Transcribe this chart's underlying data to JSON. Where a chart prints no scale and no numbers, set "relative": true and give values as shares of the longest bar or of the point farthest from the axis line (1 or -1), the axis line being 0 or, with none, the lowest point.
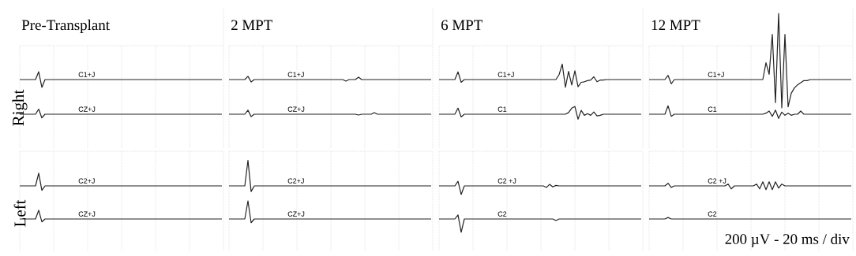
{
  "chart_data": [
    {
      "type": "line",
      "relative": true,
      "grid": true,
      "title": "Pre-Transplant",
      "ylabel": "Right",
      "categories": [
        null,
        null,
        null,
        null,
        null,
        null,
        null,
        null,
        null,
        null,
        null,
        null,
        null,
        null,
        null,
        null,
        null,
        null,
        null,
        null,
        null,
        null,
        null,
        null,
        null,
        null,
        null,
        null,
        null,
        null,
        null,
        null,
        null,
        null,
        null,
        null,
        null,
        null,
        null,
        null,
        null,
        null,
        null,
        null,
        null,
        null,
        null,
        null,
        null,
        null,
        null,
        null,
        null,
        null,
        null,
        null,
        null,
        null,
        null,
        null,
        null,
        null,
        null,
        null,
        null
      ],
      "series": [
        {
          "name": "C1+J",
          "color": "#222222",
          "values": [
            0.83,
            0.83,
            0.83,
            0.83,
            0.83,
            0.83,
            1,
            0.66,
            0.83,
            0.83,
            0.83,
            0.83,
            0.83,
            0.83,
            0.83,
            0.83,
            0.83,
            0.83,
            0.83,
            0.83,
            0.83,
            0.83,
            0.83,
            0.83,
            0.83,
            0.83,
            0.83,
            0.83,
            0.83,
            0.83,
            0.83,
            0.83,
            0.83,
            0.83,
            0.83,
            0.83,
            0.83,
            0.83,
            0.83,
            0.83,
            0.83,
            0.83,
            0.83,
            0.83,
            0.83,
            0.83,
            0.83,
            0.83,
            0.83,
            0.83,
            0.83,
            0.83,
            0.83,
            0.83,
            0.83,
            0.83,
            0.83,
            0.83,
            0.83,
            0.83,
            0.83,
            0.83,
            0.83,
            0.83,
            0.83
          ]
        },
        {
          "name": "CZ+J",
          "color": "#222222",
          "values": [
            0.08,
            0.08,
            0.08,
            0.08,
            0.08,
            0.08,
            0.19,
            0,
            0.08,
            0.08,
            0.08,
            0.08,
            0.08,
            0.08,
            0.08,
            0.08,
            0.08,
            0.08,
            0.08,
            0.08,
            0.08,
            0.08,
            0.08,
            0.08,
            0.08,
            0.08,
            0.08,
            0.08,
            0.08,
            0.08,
            0.08,
            0.08,
            0.08,
            0.08,
            0.08,
            0.08,
            0.08,
            0.08,
            0.08,
            0.08,
            0.08,
            0.08,
            0.08,
            0.08,
            0.08,
            0.08,
            0.08,
            0.08,
            0.08,
            0.08,
            0.08,
            0.08,
            0.08,
            0.08,
            0.08,
            0.08,
            0.08,
            0.08,
            0.08,
            0.08,
            0.08,
            0.08,
            0.08,
            0.08,
            0.08
          ]
        }
      ]
    },
    {
      "type": "line",
      "relative": true,
      "grid": true,
      "title": "2 MPT",
      "categories": [
        null,
        null,
        null,
        null,
        null,
        null,
        null,
        null,
        null,
        null,
        null,
        null,
        null,
        null,
        null,
        null,
        null,
        null,
        null,
        null,
        null,
        null,
        null,
        null,
        null,
        null,
        null,
        null,
        null,
        null,
        null,
        null,
        null,
        null,
        null,
        null,
        null,
        null,
        null,
        null,
        null,
        null,
        null,
        null,
        null,
        null,
        null,
        null,
        null,
        null,
        null,
        null,
        null,
        null,
        null,
        null,
        null,
        null,
        null,
        null,
        null,
        null,
        null,
        null,
        null
      ],
      "series": [
        {
          "name": "C1+J",
          "color": "#222222",
          "values": [
            0.92,
            0.92,
            0.92,
            0.92,
            0.92,
            0.92,
            1,
            0.86,
            0.92,
            0.92,
            0.92,
            0.92,
            0.92,
            0.92,
            0.92,
            0.92,
            0.92,
            0.92,
            0.92,
            0.92,
            0.92,
            0.92,
            0.92,
            0.92,
            0.92,
            0.92,
            0.92,
            0.92,
            0.92,
            0.92,
            0.92,
            0.92,
            0.92,
            0.92,
            0.92,
            0.92,
            0.92,
            0.88,
            0.92,
            0.92,
            0.92,
            0.98,
            0.92,
            0.92,
            0.92,
            0.92,
            0.92,
            0.92,
            0.92,
            0.92,
            0.92,
            0.92,
            0.92,
            0.92,
            0.92,
            0.92,
            0.92,
            0.92,
            0.92,
            0.92,
            0.92,
            0.92,
            0.92,
            0.92,
            0.92
          ]
        },
        {
          "name": "CZ+J",
          "color": "#222222",
          "values": [
            0.06,
            0.06,
            0.06,
            0.06,
            0.06,
            0.06,
            0.16,
            0,
            0.06,
            0.06,
            0.06,
            0.06,
            0.06,
            0.06,
            0.06,
            0.06,
            0.06,
            0.06,
            0.06,
            0.06,
            0.06,
            0.06,
            0.06,
            0.06,
            0.06,
            0.06,
            0.06,
            0.06,
            0.06,
            0.06,
            0.06,
            0.06,
            0.06,
            0.06,
            0.06,
            0.06,
            0.06,
            0.06,
            0.06,
            0.06,
            0.06,
            0.04,
            0.06,
            0.06,
            0.06,
            0.06,
            0.1,
            0.06,
            0.06,
            0.06,
            0.06,
            0.06,
            0.06,
            0.06,
            0.06,
            0.06,
            0.06,
            0.06,
            0.06,
            0.06,
            0.06,
            0.06,
            0.06,
            0.06,
            0.06
          ]
        }
      ]
    },
    {
      "type": "line",
      "relative": true,
      "grid": true,
      "title": "6 MPT",
      "categories": [
        null,
        null,
        null,
        null,
        null,
        null,
        null,
        null,
        null,
        null,
        null,
        null,
        null,
        null,
        null,
        null,
        null,
        null,
        null,
        null,
        null,
        null,
        null,
        null,
        null,
        null,
        null,
        null,
        null,
        null,
        null,
        null,
        null,
        null,
        null,
        null,
        null,
        null,
        null,
        null,
        null,
        null,
        null,
        null,
        null,
        null,
        null,
        null,
        null,
        null,
        null,
        null,
        null,
        null,
        null,
        null,
        null,
        null,
        null,
        null,
        null,
        null,
        null,
        null,
        null
      ],
      "series": [
        {
          "name": "C1+J",
          "color": "#222222",
          "values": [
            0.72,
            0.72,
            0.72,
            0.72,
            0.72,
            0.72,
            0.86,
            0.67,
            0.72,
            0.72,
            0.72,
            0.72,
            0.72,
            0.72,
            0.72,
            0.72,
            0.72,
            0.72,
            0.72,
            0.72,
            0.72,
            0.72,
            0.72,
            0.72,
            0.72,
            0.72,
            0.72,
            0.72,
            0.72,
            0.72,
            0.72,
            0.72,
            0.72,
            0.72,
            0.72,
            0.72,
            0.72,
            0.72,
            0.81,
            1,
            0.58,
            0.87,
            0.62,
            0.88,
            0.59,
            0.67,
            0.68,
            0.7,
            0.71,
            0.77,
            0.68,
            0.71,
            0.71,
            0.72,
            0.72,
            0.72,
            0.72,
            0.72,
            0.72,
            0.72,
            0.72,
            0.72,
            0.72,
            0.72,
            0.72
          ]
        },
        {
          "name": "C1",
          "color": "#222222",
          "values": [
            0.09,
            0.09,
            0.09,
            0.09,
            0.09,
            0.09,
            0.2,
            0.04,
            0.09,
            0.09,
            0.09,
            0.09,
            0.09,
            0.09,
            0.09,
            0.09,
            0.09,
            0.09,
            0.09,
            0.09,
            0.09,
            0.09,
            0.09,
            0.09,
            0.09,
            0.09,
            0.09,
            0.09,
            0.09,
            0.09,
            0.09,
            0.09,
            0.09,
            0.09,
            0.09,
            0.09,
            0.09,
            0.09,
            0.09,
            0.09,
            0.09,
            0.12,
            0.2,
            0.23,
            0,
            0.16,
            0.07,
            0.1,
            0.07,
            0.13,
            0.06,
            0.07,
            0.09,
            0.09,
            0.09,
            0.09,
            0.09,
            0.09,
            0.09,
            0.09,
            0.09,
            0.09,
            0.09,
            0.09,
            0.09
          ]
        }
      ]
    },
    {
      "type": "line",
      "relative": true,
      "grid": true,
      "title": "12 MPT",
      "categories": [
        null,
        null,
        null,
        null,
        null,
        null,
        null,
        null,
        null,
        null,
        null,
        null,
        null,
        null,
        null,
        null,
        null,
        null,
        null,
        null,
        null,
        null,
        null,
        null,
        null,
        null,
        null,
        null,
        null,
        null,
        null,
        null,
        null,
        null,
        null,
        null,
        null,
        null,
        null,
        null,
        null,
        null,
        null,
        null,
        null,
        null,
        null,
        null,
        null,
        null,
        null,
        null,
        null,
        null,
        null,
        null,
        null,
        null,
        null,
        null,
        null,
        null,
        null,
        null,
        null
      ],
      "series": [
        {
          "name": "C1+J",
          "color": "#222222",
          "values": [
            0.37,
            0.37,
            0.37,
            0.37,
            0.37,
            0.37,
            0.41,
            0.33,
            0.37,
            0.37,
            0.37,
            0.37,
            0.37,
            0.37,
            0.37,
            0.37,
            0.37,
            0.37,
            0.37,
            0.37,
            0.37,
            0.37,
            0.37,
            0.37,
            0.37,
            0.37,
            0.37,
            0.37,
            0.37,
            0.37,
            0.37,
            0.37,
            0.37,
            0.37,
            0.37,
            0.37,
            0.37,
            0.53,
            0.42,
            0.8,
            0.15,
            1,
            0.1,
            0.8,
            0.11,
            0.24,
            0.29,
            0.32,
            0.34,
            0.36,
            0.36,
            0.37,
            0.37,
            0.37,
            0.37,
            0.37,
            0.37,
            0.37,
            0.37,
            0.37,
            0.37,
            0.37,
            0.37,
            0.37,
            0.37
          ]
        },
        {
          "name": "C1",
          "color": "#222222",
          "values": [
            0.04,
            0.04,
            0.04,
            0.04,
            0.04,
            0.04,
            0.12,
            0.02,
            0.04,
            0.04,
            0.04,
            0.04,
            0.04,
            0.04,
            0.04,
            0.04,
            0.04,
            0.04,
            0.04,
            0.04,
            0.04,
            0.04,
            0.04,
            0.04,
            0.04,
            0.04,
            0.04,
            0.04,
            0.04,
            0.04,
            0.04,
            0.04,
            0.04,
            0.04,
            0.04,
            0.04,
            0.04,
            0.05,
            0.07,
            0.02,
            0.08,
            0,
            0.06,
            0.03,
            0.05,
            0.03,
            0.04,
            0.04,
            0.07,
            0.04,
            0.04,
            0.04,
            0.04,
            0.04,
            0.04,
            0.04,
            0.04,
            0.04,
            0.04,
            0.04,
            0.04,
            0.04,
            0.04,
            0.04,
            0.04
          ]
        }
      ]
    },
    {
      "type": "line",
      "relative": true,
      "grid": true,
      "ylabel": "Left",
      "categories": [
        null,
        null,
        null,
        null,
        null,
        null,
        null,
        null,
        null,
        null,
        null,
        null,
        null,
        null,
        null,
        null,
        null,
        null,
        null,
        null,
        null,
        null,
        null,
        null,
        null,
        null,
        null,
        null,
        null,
        null,
        null,
        null,
        null,
        null,
        null,
        null,
        null,
        null,
        null,
        null,
        null,
        null,
        null,
        null,
        null,
        null,
        null,
        null,
        null,
        null,
        null,
        null,
        null,
        null,
        null,
        null,
        null,
        null,
        null,
        null,
        null,
        null,
        null,
        null,
        null
      ],
      "series": [
        {
          "name": "C2+J",
          "color": "#222222",
          "values": [
            0.74,
            0.74,
            0.74,
            0.74,
            0.74,
            0.74,
            1,
            0.65,
            0.74,
            0.74,
            0.74,
            0.74,
            0.74,
            0.74,
            0.74,
            0.74,
            0.74,
            0.74,
            0.74,
            0.74,
            0.74,
            0.74,
            0.74,
            0.74,
            0.74,
            0.74,
            0.74,
            0.74,
            0.74,
            0.74,
            0.74,
            0.74,
            0.74,
            0.74,
            0.74,
            0.74,
            0.74,
            0.74,
            0.74,
            0.74,
            0.74,
            0.74,
            0.74,
            0.74,
            0.74,
            0.74,
            0.74,
            0.74,
            0.74,
            0.74,
            0.74,
            0.74,
            0.74,
            0.74,
            0.74,
            0.74,
            0.74,
            0.74,
            0.74,
            0.74,
            0.74,
            0.74,
            0.74,
            0.74,
            0.74
          ]
        },
        {
          "name": "CZ+J",
          "color": "#222222",
          "values": [
            0.06,
            0.06,
            0.06,
            0.06,
            0.06,
            0.06,
            0.24,
            0,
            0.06,
            0.06,
            0.06,
            0.06,
            0.06,
            0.06,
            0.06,
            0.06,
            0.06,
            0.06,
            0.06,
            0.06,
            0.06,
            0.06,
            0.06,
            0.06,
            0.06,
            0.06,
            0.06,
            0.06,
            0.06,
            0.06,
            0.06,
            0.06,
            0.06,
            0.06,
            0.06,
            0.06,
            0.06,
            0.06,
            0.06,
            0.06,
            0.06,
            0.06,
            0.06,
            0.06,
            0.06,
            0.06,
            0.06,
            0.06,
            0.06,
            0.06,
            0.06,
            0.06,
            0.06,
            0.06,
            0.06,
            0.06,
            0.06,
            0.06,
            0.06,
            0.06,
            0.06,
            0.06,
            0.06,
            0.06,
            0.06
          ]
        }
      ]
    },
    {
      "type": "line",
      "relative": true,
      "grid": true,
      "categories": [
        null,
        null,
        null,
        null,
        null,
        null,
        null,
        null,
        null,
        null,
        null,
        null,
        null,
        null,
        null,
        null,
        null,
        null,
        null,
        null,
        null,
        null,
        null,
        null,
        null,
        null,
        null,
        null,
        null,
        null,
        null,
        null,
        null,
        null,
        null,
        null,
        null,
        null,
        null,
        null,
        null,
        null,
        null,
        null,
        null,
        null,
        null,
        null,
        null,
        null,
        null,
        null,
        null,
        null,
        null,
        null,
        null,
        null,
        null,
        null,
        null,
        null,
        null,
        null,
        null
      ],
      "series": [
        {
          "name": "C2+J",
          "color": "#222222",
          "values": [
            0.59,
            0.59,
            0.59,
            0.59,
            0.59,
            0.59,
            1,
            0.5,
            0.59,
            0.59,
            0.59,
            0.59,
            0.59,
            0.59,
            0.59,
            0.59,
            0.59,
            0.59,
            0.59,
            0.59,
            0.59,
            0.59,
            0.59,
            0.59,
            0.59,
            0.59,
            0.59,
            0.59,
            0.59,
            0.59,
            0.59,
            0.59,
            0.59,
            0.59,
            0.59,
            0.59,
            0.59,
            0.59,
            0.59,
            0.59,
            0.59,
            0.59,
            0.59,
            0.59,
            0.59,
            0.59,
            0.59,
            0.59,
            0.59,
            0.59,
            0.59,
            0.59,
            0.59,
            0.59,
            0.59,
            0.59,
            0.59,
            0.59,
            0.59,
            0.59,
            0.59,
            0.59,
            0.59,
            0.59,
            0.59
          ]
        },
        {
          "name": "CZ+J",
          "color": "#222222",
          "values": [
            0.06,
            0.06,
            0.06,
            0.06,
            0.06,
            0.06,
            0.35,
            0,
            0.06,
            0.06,
            0.06,
            0.06,
            0.06,
            0.06,
            0.06,
            0.06,
            0.06,
            0.06,
            0.06,
            0.06,
            0.06,
            0.06,
            0.06,
            0.06,
            0.06,
            0.06,
            0.06,
            0.06,
            0.06,
            0.06,
            0.06,
            0.06,
            0.06,
            0.06,
            0.06,
            0.06,
            0.06,
            0.06,
            0.06,
            0.06,
            0.06,
            0.06,
            0.06,
            0.06,
            0.06,
            0.06,
            0.06,
            0.06,
            0.06,
            0.06,
            0.06,
            0.06,
            0.06,
            0.06,
            0.06,
            0.06,
            0.06,
            0.06,
            0.06,
            0.06,
            0.06,
            0.06,
            0.06,
            0.06,
            0.06
          ]
        }
      ]
    },
    {
      "type": "line",
      "relative": true,
      "grid": true,
      "categories": [
        null,
        null,
        null,
        null,
        null,
        null,
        null,
        null,
        null,
        null,
        null,
        null,
        null,
        null,
        null,
        null,
        null,
        null,
        null,
        null,
        null,
        null,
        null,
        null,
        null,
        null,
        null,
        null,
        null,
        null,
        null,
        null,
        null,
        null,
        null,
        null,
        null,
        null,
        null,
        null,
        null,
        null,
        null,
        null,
        null,
        null,
        null,
        null,
        null,
        null,
        null,
        null,
        null,
        null,
        null,
        null,
        null,
        null,
        null,
        null,
        null,
        null,
        null,
        null,
        null
      ],
      "series": [
        {
          "name": "C2 +J",
          "color": "#222222",
          "values": [
            0.91,
            0.91,
            0.91,
            0.91,
            0.91,
            0.91,
            1,
            0.74,
            0.91,
            0.91,
            0.91,
            0.91,
            0.91,
            0.91,
            0.91,
            0.91,
            0.91,
            0.91,
            0.91,
            0.91,
            0.91,
            0.91,
            0.91,
            0.91,
            0.91,
            0.91,
            0.91,
            0.91,
            0.91,
            0.91,
            0.91,
            0.91,
            0.91,
            0.91,
            0.88,
            0.94,
            0.89,
            0.92,
            0.91,
            0.91,
            0.91,
            0.91,
            0.91,
            0.91,
            0.91,
            0.91,
            0.91,
            0.91,
            0.91,
            0.91,
            0.91,
            0.91,
            0.91,
            0.91,
            0.91,
            0.91,
            0.91,
            0.91,
            0.91,
            0.91,
            0.91,
            0.91,
            0.91,
            0.91,
            0.91
          ]
        },
        {
          "name": "C2",
          "color": "#222222",
          "values": [
            0.26,
            0.26,
            0.26,
            0.26,
            0.26,
            0.26,
            0.34,
            0,
            0.26,
            0.26,
            0.26,
            0.26,
            0.26,
            0.26,
            0.26,
            0.26,
            0.26,
            0.26,
            0.26,
            0.26,
            0.26,
            0.26,
            0.26,
            0.26,
            0.26,
            0.26,
            0.26,
            0.26,
            0.26,
            0.26,
            0.26,
            0.26,
            0.26,
            0.26,
            0.26,
            0.26,
            0.26,
            0.23,
            0.26,
            0.26,
            0.26,
            0.26,
            0.26,
            0.26,
            0.26,
            0.26,
            0.26,
            0.26,
            0.26,
            0.26,
            0.26,
            0.26,
            0.26,
            0.26,
            0.26,
            0.26,
            0.26,
            0.26,
            0.26,
            0.26,
            0.26,
            0.26,
            0.26,
            0.26,
            0.26
          ]
        }
      ]
    },
    {
      "type": "line",
      "relative": true,
      "grid": true,
      "annotations": [
        "200 µV - 20 ms / div"
      ],
      "categories": [
        null,
        null,
        null,
        null,
        null,
        null,
        null,
        null,
        null,
        null,
        null,
        null,
        null,
        null,
        null,
        null,
        null,
        null,
        null,
        null,
        null,
        null,
        null,
        null,
        null,
        null,
        null,
        null,
        null,
        null,
        null,
        null,
        null,
        null,
        null,
        null,
        null,
        null,
        null,
        null,
        null,
        null,
        null,
        null,
        null,
        null,
        null,
        null,
        null,
        null,
        null,
        null,
        null,
        null,
        null,
        null,
        null,
        null,
        null,
        null,
        null,
        null,
        null,
        null,
        null
      ],
      "series": [
        {
          "name": "C2 +J",
          "color": "#222222",
          "values": [
            0.89,
            0.89,
            0.89,
            0.89,
            0.89,
            0.89,
            0.96,
            0.85,
            0.89,
            0.89,
            0.89,
            0.89,
            0.89,
            0.89,
            0.89,
            0.89,
            0.89,
            0.89,
            0.89,
            0.89,
            0.89,
            0.89,
            0.89,
            0.89,
            0.89,
            0.94,
            0.81,
            0.89,
            0.89,
            0.89,
            0.89,
            0.89,
            0.89,
            0.89,
            0.94,
            0.81,
            1,
            0.79,
            1,
            0.79,
            1,
            0.83,
            0.94,
            0.89,
            0.89,
            0.89,
            0.89,
            0.89,
            0.89,
            0.89,
            0.89,
            0.89,
            0.89,
            0.89,
            0.89,
            0.89,
            0.89,
            0.89,
            0.89,
            0.89,
            0.89,
            0.89,
            0.89,
            0.89,
            0.89
          ]
        },
        {
          "name": "C2",
          "color": "#222222",
          "values": [
            0,
            0,
            0,
            0,
            0,
            0,
            0.04,
            0,
            0,
            0,
            0,
            0,
            0,
            0,
            0,
            0,
            0,
            0,
            0,
            0,
            0,
            0,
            0,
            0,
            0,
            0,
            0,
            0,
            0,
            0,
            0,
            0,
            0,
            0,
            0,
            0,
            0,
            0,
            0,
            0,
            0,
            0,
            0,
            0,
            0,
            0,
            0,
            0,
            0,
            0,
            0,
            0,
            0,
            0,
            0,
            0,
            0,
            0,
            0,
            0,
            0,
            0,
            0,
            0,
            0
          ]
        }
      ]
    }
  ]
}
